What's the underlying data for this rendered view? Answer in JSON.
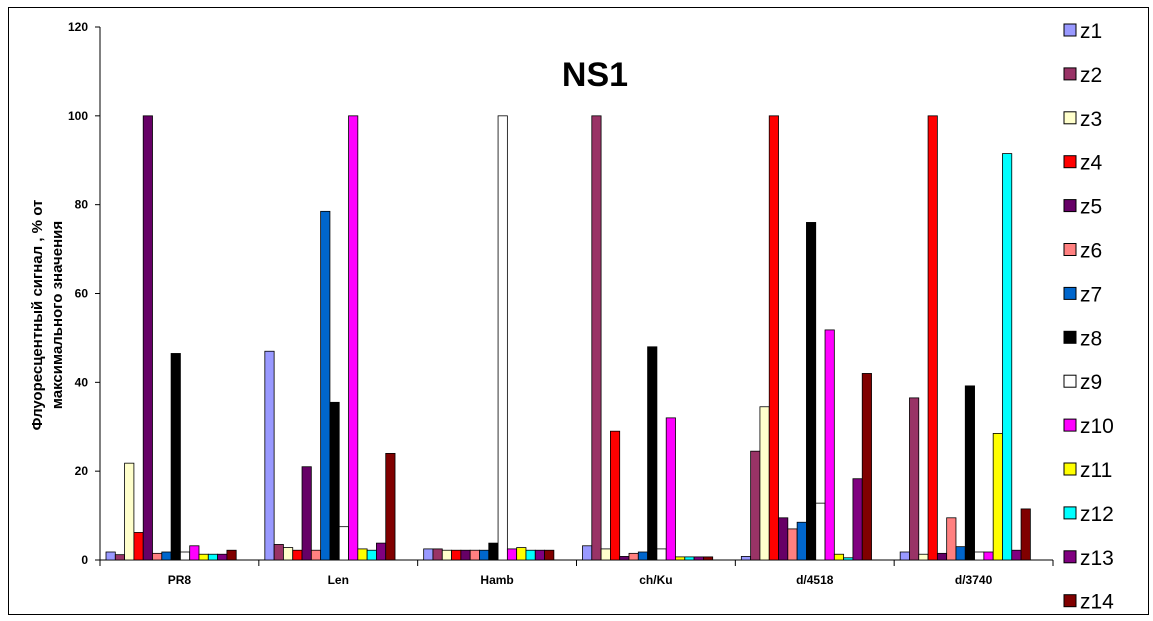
{
  "chart_data": {
    "type": "bar",
    "title": "NS1",
    "ylabel_lines": [
      "Флуоресцентный сигнал , % от",
      "максимального значения"
    ],
    "xlabel": "",
    "ylim": [
      0,
      120
    ],
    "yticks": [
      "0",
      "20",
      "40",
      "60",
      "80",
      "100",
      "120"
    ],
    "grid": false,
    "legend_position": "right",
    "categories": [
      "PR8",
      "Len",
      "Hamb",
      "ch/Ku",
      "d/4518",
      "d/3740"
    ],
    "series": [
      {
        "name": "z1",
        "color": "#9999ff",
        "values": [
          1.8,
          47,
          2.5,
          3.2,
          0.8,
          1.8
        ]
      },
      {
        "name": "z2",
        "color": "#993366",
        "values": [
          1.2,
          3.5,
          2.5,
          100,
          24.5,
          36.5
        ]
      },
      {
        "name": "z3",
        "color": "#ffffcc",
        "values": [
          21.8,
          2.8,
          2.2,
          2.5,
          34.5,
          1.3
        ]
      },
      {
        "name": "z4",
        "color": "#ff0000",
        "values": [
          6.2,
          2.2,
          2.2,
          29,
          100,
          100
        ]
      },
      {
        "name": "z5",
        "color": "#660066",
        "values": [
          100,
          21,
          2.2,
          0.8,
          9.5,
          1.5
        ]
      },
      {
        "name": "z6",
        "color": "#ff8080",
        "values": [
          1.5,
          2.2,
          2.2,
          1.5,
          7,
          9.5
        ]
      },
      {
        "name": "z7",
        "color": "#0066cc",
        "values": [
          1.8,
          78.5,
          2.2,
          1.8,
          8.5,
          3
        ]
      },
      {
        "name": "z8",
        "color": "#000000",
        "values": [
          46.5,
          35.5,
          3.8,
          48,
          76,
          39.2
        ]
      },
      {
        "name": "z9",
        "color": "#ffffff",
        "values": [
          1.8,
          7.5,
          100,
          2.5,
          12.8,
          1.8
        ]
      },
      {
        "name": "z10",
        "color": "#ff00ff",
        "values": [
          3.2,
          100,
          2.5,
          32,
          51.8,
          1.8
        ]
      },
      {
        "name": "z11",
        "color": "#ffff00",
        "values": [
          1.3,
          2.5,
          2.8,
          0.7,
          1.3,
          28.5
        ]
      },
      {
        "name": "z12",
        "color": "#00ffff",
        "values": [
          1.3,
          2.2,
          2.2,
          0.7,
          0.5,
          91.5
        ]
      },
      {
        "name": "z13",
        "color": "#800080",
        "values": [
          1.3,
          3.8,
          2.2,
          0.7,
          18.3,
          2.2
        ]
      },
      {
        "name": "z14",
        "color": "#800000",
        "values": [
          2.2,
          24,
          2.2,
          0.7,
          42,
          11.5
        ]
      }
    ]
  }
}
